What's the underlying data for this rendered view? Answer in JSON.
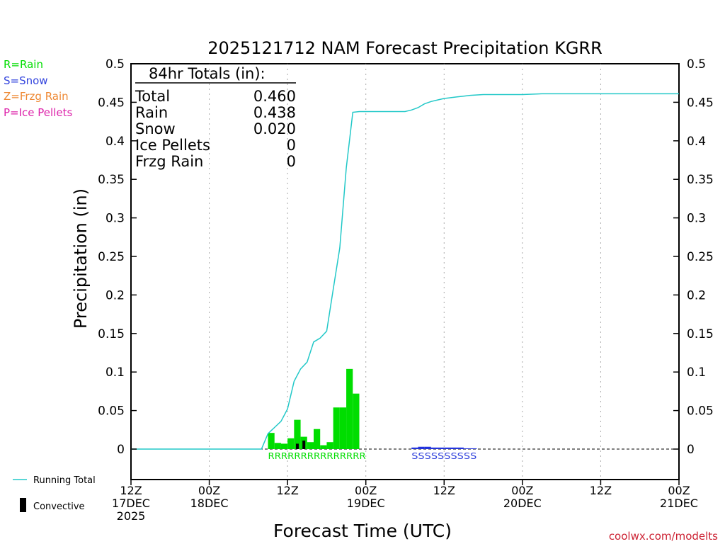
{
  "colors": {
    "rain": "#00dd00",
    "snow": "#2233dd",
    "zr": "#ee8833",
    "ip": "#dd22aa",
    "total_line": "#22c8c8",
    "convective": "#000000",
    "credit": "#cc2233",
    "grid": "#aaaaaa"
  },
  "legend_left": [
    {
      "label": "R=Rain",
      "color": "#00dd00"
    },
    {
      "label": "S=Snow",
      "color": "#3344dd"
    },
    {
      "label": "Z=Frzg Rain",
      "color": "#ee8833"
    },
    {
      "label": "P=Ice Pellets",
      "color": "#dd22aa"
    }
  ],
  "legend_bottom": {
    "running_total": "Running Total",
    "convective": "Convective"
  },
  "credit": "coolwx.com/modelts",
  "totals_box": {
    "header": "84hr Totals (in):",
    "rows": [
      {
        "label": "Total",
        "value": "0.460"
      },
      {
        "label": "Rain",
        "value": "0.438"
      },
      {
        "label": "Snow",
        "value": "0.020"
      },
      {
        "label": "Ice Pellets",
        "value": "0"
      },
      {
        "label": "Frzg Rain",
        "value": "0"
      }
    ]
  },
  "chart_data": {
    "type": "bar",
    "title": "2025121712 NAM Forecast Precipitation KGRR",
    "xlabel": "Forecast Time (UTC)",
    "ylabel": "Precipitation (in)",
    "xlim_hours": [
      0,
      84
    ],
    "ylim": [
      -0.04,
      0.5
    ],
    "y_ticks": [
      0,
      0.05,
      0.1,
      0.15,
      0.2,
      0.25,
      0.3,
      0.35,
      0.4,
      0.45,
      0.5
    ],
    "y_tick_labels": [
      "0",
      "0.05",
      "0.1",
      "0.15",
      "0.2",
      "0.25",
      "0.3",
      "0.35",
      "0.4",
      "0.45",
      "0.5"
    ],
    "x_ticks": [
      {
        "hour": 0,
        "lines": [
          "12Z",
          "17DEC",
          "2025"
        ]
      },
      {
        "hour": 12,
        "lines": [
          "00Z",
          "18DEC"
        ]
      },
      {
        "hour": 24,
        "lines": [
          "12Z"
        ]
      },
      {
        "hour": 36,
        "lines": [
          "00Z",
          "19DEC"
        ]
      },
      {
        "hour": 48,
        "lines": [
          "12Z"
        ]
      },
      {
        "hour": 60,
        "lines": [
          "00Z",
          "20DEC"
        ]
      },
      {
        "hour": 72,
        "lines": [
          "12Z"
        ]
      },
      {
        "hour": 84,
        "lines": [
          "00Z",
          "21DEC"
        ]
      }
    ],
    "grid": "vertical dotted at 12h ticks",
    "bar_width_hours": 1,
    "rain_bars": [
      {
        "hour": 21,
        "value": 0.021
      },
      {
        "hour": 22,
        "value": 0.008
      },
      {
        "hour": 23,
        "value": 0.007
      },
      {
        "hour": 24,
        "value": 0.014
      },
      {
        "hour": 25,
        "value": 0.038
      },
      {
        "hour": 26,
        "value": 0.016
      },
      {
        "hour": 27,
        "value": 0.009
      },
      {
        "hour": 28,
        "value": 0.026
      },
      {
        "hour": 29,
        "value": 0.005
      },
      {
        "hour": 30,
        "value": 0.009
      },
      {
        "hour": 31,
        "value": 0.054
      },
      {
        "hour": 32,
        "value": 0.054
      },
      {
        "hour": 33,
        "value": 0.104
      },
      {
        "hour": 34,
        "value": 0.072
      }
    ],
    "snow_bars": [
      {
        "hour": 43,
        "value": 0.002
      },
      {
        "hour": 44,
        "value": 0.003
      },
      {
        "hour": 45,
        "value": 0.003
      },
      {
        "hour": 46,
        "value": 0.002
      },
      {
        "hour": 47,
        "value": 0.002
      },
      {
        "hour": 48,
        "value": 0.002
      },
      {
        "hour": 49,
        "value": 0.002
      },
      {
        "hour": 50,
        "value": 0.002
      },
      {
        "hour": 51,
        "value": 0.001
      },
      {
        "hour": 52,
        "value": 0.001
      }
    ],
    "convective_bars": [
      {
        "hour": 25.5,
        "value": 0.007
      },
      {
        "hour": 26.5,
        "value": 0.011
      }
    ],
    "running_total": {
      "x": [
        0,
        20,
        21,
        22,
        23,
        24,
        25,
        26,
        27,
        28,
        29,
        30,
        31,
        32,
        33,
        34,
        35,
        42,
        43,
        44,
        45,
        46,
        47,
        48,
        49,
        50,
        51,
        52,
        54,
        60,
        63,
        84
      ],
      "y": [
        0,
        0,
        0.02,
        0.028,
        0.036,
        0.052,
        0.088,
        0.104,
        0.113,
        0.139,
        0.144,
        0.153,
        0.207,
        0.261,
        0.365,
        0.437,
        0.438,
        0.438,
        0.44,
        0.443,
        0.448,
        0.451,
        0.453,
        0.455,
        0.456,
        0.457,
        0.458,
        0.459,
        0.46,
        0.46,
        0.461,
        0.461
      ]
    },
    "ptype_rows": [
      {
        "text": "RRRRRRRRRRRRRRR",
        "color": "#00dd00",
        "start_hour": 21,
        "end_hour": 36
      },
      {
        "text": "SSSSSSSSSS",
        "color": "#3344dd",
        "start_hour": 43,
        "end_hour": 53
      }
    ]
  }
}
